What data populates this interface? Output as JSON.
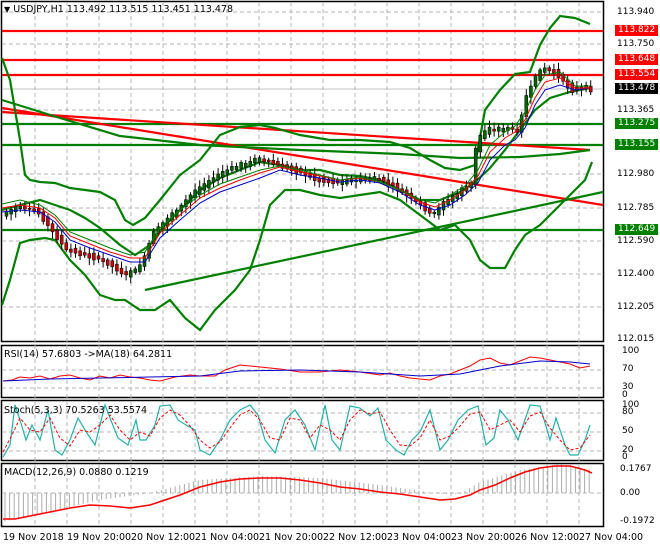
{
  "header": {
    "symbol_label": "USDJPY,H1",
    "ohlc": "113.492 113.515 113.451 113.478"
  },
  "main_axis": {
    "ticks": [
      "113.940",
      "113.750",
      "113.365",
      "112.980",
      "112.785",
      "112.590",
      "112.400",
      "112.205",
      "112.015"
    ]
  },
  "price_boxes": [
    {
      "value": "113.822",
      "color": "#ff0000"
    },
    {
      "value": "113.648",
      "color": "#ff0000"
    },
    {
      "value": "113.554",
      "color": "#ff0000"
    },
    {
      "value": "113.478",
      "color": "#000000"
    },
    {
      "value": "113.275",
      "color": "#008000"
    },
    {
      "value": "113.155",
      "color": "#008000"
    },
    {
      "value": "112.649",
      "color": "#008000"
    }
  ],
  "rsi": {
    "label": "RSI(14) 57.6803  ->MA(18) 64.2811",
    "ticks": [
      "100",
      "70",
      "30",
      "0"
    ]
  },
  "stoch": {
    "label": "Stoch(5,3,3) 70.5263 53.5574",
    "ticks": [
      "100",
      "80",
      "50",
      "20",
      "0"
    ]
  },
  "macd": {
    "label": "MACD(12,26,9) 0.0880 0.1219",
    "ticks": [
      "0.1767",
      "0.00",
      "-0.1972"
    ]
  },
  "time_axis": {
    "labels": [
      "19 Nov 2018",
      "19 Nov 20:00",
      "20 Nov 12:00",
      "21 Nov 04:00",
      "21 Nov 20:00",
      "22 Nov 12:00",
      "23 Nov 04:00",
      "23 Nov 20:00",
      "26 Nov 12:00",
      "27 Nov 04:00"
    ]
  },
  "colors": {
    "resistance": "#ff0000",
    "support": "#008000",
    "bollinger": "#008000",
    "trend_down": "#ff0000",
    "trend_up": "#008000",
    "bull_candle": "#006400",
    "bear_candle": "#cc0000",
    "rsi_line": "#ff0000",
    "rsi_ma": "#0000cc",
    "stoch_main": "#20b2aa",
    "stoch_signal": "#ff0000",
    "macd_signal": "#ff0000",
    "macd_hist": "#aaaaaa"
  },
  "chart_data": {
    "type": "candlestick",
    "title": "USDJPY,H1",
    "ohlc_last": {
      "open": 113.492,
      "high": 113.515,
      "low": 113.451,
      "close": 113.478
    },
    "ylim": [
      112.015,
      113.94
    ],
    "horizontal_levels": {
      "resistance": [
        113.822,
        113.648,
        113.554
      ],
      "support": [
        113.275,
        113.155,
        112.649
      ],
      "current": 113.478
    },
    "x_labels": [
      "19 Nov 2018",
      "19 Nov 20:00",
      "20 Nov 12:00",
      "21 Nov 04:00",
      "21 Nov 20:00",
      "22 Nov 12:00",
      "23 Nov 04:00",
      "23 Nov 20:00",
      "26 Nov 12:00",
      "27 Nov 04:00"
    ],
    "indicators": {
      "RSI(14)": {
        "value": 57.6803,
        "ma18": 64.2811,
        "levels": [
          100,
          70,
          30,
          0
        ]
      },
      "Stoch(5,3,3)": {
        "main": 70.5263,
        "signal": 53.5574,
        "levels": [
          100,
          80,
          50,
          20,
          0
        ]
      },
      "MACD(12,26,9)": {
        "macd": 0.088,
        "signal": 0.1219,
        "range": [
          -0.1972,
          0.1767
        ]
      }
    },
    "grid": true
  }
}
